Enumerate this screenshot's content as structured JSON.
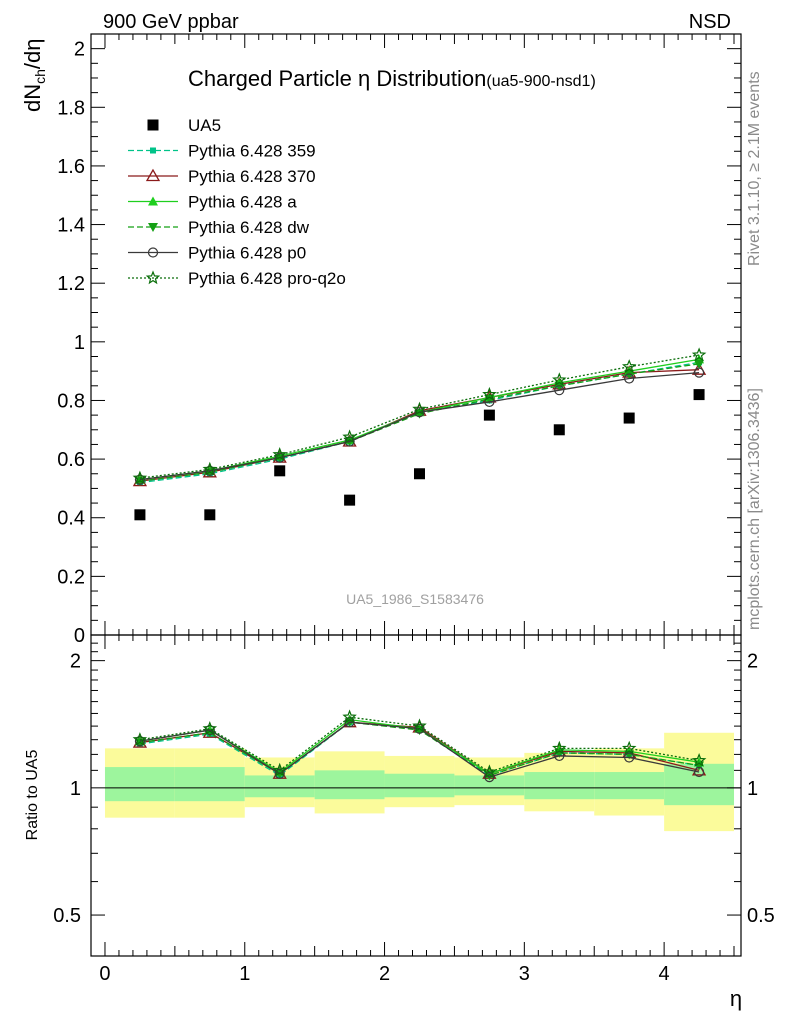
{
  "header": {
    "left": "900 GeV ppbar",
    "right": "NSD"
  },
  "side_labels": {
    "rivet": "Rivet 3.1.10, ≥ 2.1M events",
    "mcplots": "mcplots.cern.ch [arXiv:1306.3436]"
  },
  "colors": {
    "frame": "#000000",
    "band_inner": "#9df59d",
    "band_outer": "#fbfb9b",
    "watermark": "#a0a0a0"
  },
  "chart_data": [
    {
      "type": "scatter",
      "title": "Charged Particle η Distribution",
      "title_suffix": "(ua5-900-nsd1)",
      "ylabel": "dNch/dη",
      "watermark": "UA5_1986_S1583476",
      "xlim": [
        -0.1,
        4.55
      ],
      "ylim": [
        0,
        2.05
      ],
      "yticks": [
        "0",
        "0.2",
        "0.4",
        "0.6",
        "0.8",
        "1",
        "1.2",
        "1.4",
        "1.6",
        "1.8",
        "2"
      ],
      "x": [
        0.25,
        0.75,
        1.25,
        1.75,
        2.25,
        2.75,
        3.25,
        3.75,
        4.25
      ],
      "data": {
        "name": "UA5",
        "values": [
          0.41,
          0.41,
          0.56,
          0.46,
          0.55,
          0.75,
          0.7,
          0.74,
          0.82
        ]
      },
      "series": [
        {
          "name": "Pythia 6.428 359",
          "color": "#00c389",
          "dash": "6,3",
          "marker": "square-small",
          "values": [
            0.52,
            0.55,
            0.6,
            0.66,
            0.76,
            0.8,
            0.85,
            0.89,
            0.93
          ]
        },
        {
          "name": "Pythia 6.428 370",
          "color": "#8b1a1a",
          "dash": "",
          "marker": "triangle-open",
          "values": [
            0.525,
            0.555,
            0.605,
            0.66,
            0.765,
            0.81,
            0.855,
            0.895,
            0.905
          ]
        },
        {
          "name": "Pythia 6.428 a",
          "color": "#1ecf1e",
          "dash": "",
          "marker": "triangle",
          "values": [
            0.53,
            0.56,
            0.61,
            0.665,
            0.76,
            0.81,
            0.86,
            0.9,
            0.94
          ]
        },
        {
          "name": "Pythia 6.428 dw",
          "color": "#14a014",
          "dash": "6,3",
          "marker": "triangle-down",
          "values": [
            0.525,
            0.555,
            0.605,
            0.66,
            0.755,
            0.805,
            0.85,
            0.89,
            0.925
          ]
        },
        {
          "name": "Pythia 6.428 p0",
          "color": "#3a3a3a",
          "dash": "",
          "marker": "circle-open",
          "values": [
            0.53,
            0.56,
            0.605,
            0.66,
            0.76,
            0.795,
            0.835,
            0.875,
            0.895
          ]
        },
        {
          "name": "Pythia 6.428 pro-q2o",
          "color": "#0a6e0a",
          "dash": "2,2",
          "marker": "star",
          "values": [
            0.535,
            0.565,
            0.615,
            0.675,
            0.77,
            0.82,
            0.87,
            0.915,
            0.955
          ]
        }
      ]
    },
    {
      "type": "line",
      "ylabel": "Ratio to UA5",
      "xlabel": "η",
      "log_y": true,
      "ylim": [
        0.4,
        2.3
      ],
      "yticks": [
        "0.5",
        "1",
        "2"
      ],
      "xticks": [
        "0",
        "1",
        "2",
        "3",
        "4"
      ],
      "bins": [
        [
          0,
          0.5
        ],
        [
          0.5,
          1.0
        ],
        [
          1.0,
          1.5
        ],
        [
          1.5,
          2.0
        ],
        [
          2.0,
          2.5
        ],
        [
          2.5,
          3.0
        ],
        [
          3.0,
          3.5
        ],
        [
          3.5,
          4.0
        ],
        [
          4.0,
          4.5
        ]
      ],
      "band_inner": [
        [
          0.93,
          1.12
        ],
        [
          0.93,
          1.12
        ],
        [
          0.95,
          1.07
        ],
        [
          0.94,
          1.1
        ],
        [
          0.95,
          1.08
        ],
        [
          0.96,
          1.07
        ],
        [
          0.94,
          1.09
        ],
        [
          0.94,
          1.09
        ],
        [
          0.91,
          1.14
        ]
      ],
      "band_outer": [
        [
          0.85,
          1.24
        ],
        [
          0.85,
          1.24
        ],
        [
          0.9,
          1.18
        ],
        [
          0.87,
          1.22
        ],
        [
          0.9,
          1.19
        ],
        [
          0.91,
          1.18
        ],
        [
          0.88,
          1.21
        ],
        [
          0.86,
          1.24
        ],
        [
          0.79,
          1.35
        ]
      ],
      "x": [
        0.25,
        0.75,
        1.25,
        1.75,
        2.25,
        2.75,
        3.25,
        3.75,
        4.25
      ],
      "series": [
        {
          "name": "Pythia 6.428 359",
          "values": [
            1.27,
            1.34,
            1.07,
            1.43,
            1.38,
            1.07,
            1.21,
            1.2,
            1.13
          ]
        },
        {
          "name": "Pythia 6.428 370",
          "values": [
            1.28,
            1.35,
            1.08,
            1.43,
            1.39,
            1.08,
            1.22,
            1.21,
            1.1
          ]
        },
        {
          "name": "Pythia 6.428 a",
          "values": [
            1.29,
            1.37,
            1.09,
            1.45,
            1.38,
            1.08,
            1.23,
            1.22,
            1.15
          ]
        },
        {
          "name": "Pythia 6.428 dw",
          "values": [
            1.28,
            1.35,
            1.08,
            1.43,
            1.37,
            1.07,
            1.21,
            1.2,
            1.13
          ]
        },
        {
          "name": "Pythia 6.428 p0",
          "values": [
            1.29,
            1.37,
            1.08,
            1.43,
            1.38,
            1.06,
            1.19,
            1.18,
            1.09
          ]
        },
        {
          "name": "Pythia 6.428 pro-q2o",
          "values": [
            1.3,
            1.38,
            1.1,
            1.47,
            1.4,
            1.09,
            1.24,
            1.24,
            1.16
          ]
        }
      ]
    }
  ]
}
